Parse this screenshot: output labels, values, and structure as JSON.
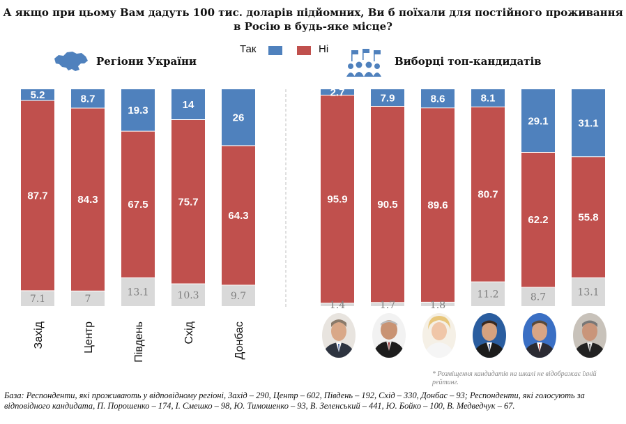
{
  "title": "А якщо при цьому Вам дадуть 100 тис. доларів підйомних, Ви б поїхали для постійного проживання в Росію в будь-яке місце?",
  "legend": [
    {
      "label": "Так",
      "color": "#4f81bd"
    },
    {
      "label": "Ні",
      "color": "#c0504d"
    }
  ],
  "colors": {
    "yes": "#4f81bd",
    "no": "#c0504d",
    "other": "#d9d9d9",
    "other_text": "#7f7f7f",
    "divider": "#bfbfbf"
  },
  "groups": {
    "regions_title": "Регіони України",
    "candidates_title": "Виборці топ-кандидатів",
    "regions_icon": "ukraine-map-icon",
    "candidates_icon": "voters-flags-icon"
  },
  "chart_data": [
    {
      "type": "bar",
      "stacked": true,
      "title": "Регіони України",
      "categories": [
        "Захід",
        "Центр",
        "Південь",
        "Схід",
        "Донбас"
      ],
      "series": [
        {
          "name": "Так",
          "values": [
            5.2,
            8.7,
            19.3,
            14,
            26
          ]
        },
        {
          "name": "Ні",
          "values": [
            87.7,
            84.3,
            67.5,
            75.7,
            64.3
          ]
        },
        {
          "values": [
            7.1,
            7,
            13.1,
            10.3,
            9.7
          ]
        }
      ],
      "ylim": [
        0,
        100
      ]
    },
    {
      "type": "bar",
      "stacked": true,
      "title": "Виборці топ-кандидатів",
      "categories": [
        "П. Порошенко",
        "І. Смешко",
        "Ю. Тимошенко",
        "В. Зеленський",
        "Ю. Бойко",
        "В. Медведчук"
      ],
      "series": [
        {
          "name": "Так",
          "values": [
            2.7,
            7.9,
            8.6,
            8.1,
            29.1,
            31.1
          ]
        },
        {
          "name": "Ні",
          "values": [
            95.9,
            90.5,
            89.6,
            80.7,
            62.2,
            55.8
          ]
        },
        {
          "values": [
            1.4,
            1.7,
            1.8,
            11.2,
            8.7,
            13.1
          ]
        }
      ],
      "ylim": [
        0,
        100
      ]
    }
  ],
  "footnote": "* Розміщення кандидатів на шкалі не відображає їхній рейтинг.",
  "base_note": "База: Респонденти, які проживають у відповідному регіоні, Захід – 290, Центр – 602, Південь – 192, Схід – 330, Донбас – 93; Респонденти, які голосують за відповідного кандидата, П. Порошенко – 174, І. Смешко – 98, Ю. Тимошенко – 93, В. Зеленський – 441, Ю. Бойко – 100, В. Медведчук – 67."
}
